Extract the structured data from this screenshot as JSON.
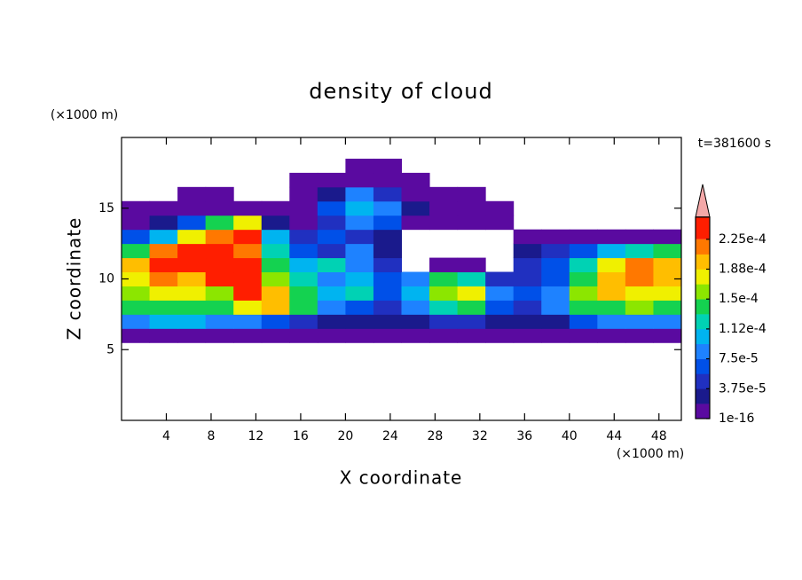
{
  "chart_data": {
    "type": "contour",
    "title": "density of cloud",
    "annotation": "t=381600 s",
    "xlabel": "X coordinate",
    "ylabel": "Z coordinate",
    "x_unit": "(×1000 m)",
    "y_unit": "(×1000 m)",
    "xlim": [
      0,
      50
    ],
    "xticks": [
      4,
      8,
      12,
      16,
      20,
      24,
      28,
      32,
      36,
      40,
      44,
      48
    ],
    "ylim": [
      0,
      20
    ],
    "yticks": [
      5,
      10,
      15
    ],
    "x": [
      1.25,
      3.75,
      6.25,
      8.75,
      11.25,
      13.75,
      16.25,
      18.75,
      21.25,
      23.75,
      26.25,
      28.75,
      31.25,
      33.75,
      36.25,
      38.75,
      41.25,
      43.75,
      46.25,
      48.75
    ],
    "y": [
      6,
      7,
      8,
      9,
      10,
      11,
      12,
      13,
      14,
      15,
      16,
      17,
      18
    ],
    "values": [
      [
        5e-06,
        5e-06,
        5e-06,
        5e-06,
        5e-06,
        5e-06,
        5e-06,
        5e-06,
        5e-06,
        5e-06,
        5e-06,
        5e-06,
        5e-06,
        5e-06,
        5e-06,
        5e-06,
        5e-06,
        5e-06,
        5e-06,
        5e-06
      ],
      [
        8e-05,
        0.0001,
        0.0001,
        9e-05,
        8e-05,
        6e-05,
        4e-05,
        3e-05,
        2e-05,
        2e-05,
        3e-05,
        4e-05,
        5e-05,
        2e-05,
        2e-05,
        3e-05,
        6e-05,
        8e-05,
        9e-05,
        9e-05
      ],
      [
        0.00014,
        0.00015,
        0.00014,
        0.00015,
        0.00018,
        0.0002,
        0.00014,
        8e-05,
        6e-05,
        5e-05,
        8e-05,
        0.00012,
        0.00014,
        6e-05,
        5e-05,
        8e-05,
        0.00014,
        0.00015,
        0.00016,
        0.00015
      ],
      [
        0.00016,
        0.00018,
        0.00017,
        0.00016,
        0.00024,
        0.0002,
        0.00014,
        0.0001,
        0.00012,
        6e-05,
        0.0001,
        0.00016,
        0.00018,
        8e-05,
        6e-05,
        8e-05,
        0.00016,
        0.00019,
        0.00018,
        0.00017
      ],
      [
        0.00018,
        0.00022,
        0.0002,
        0.00023,
        0.00025,
        0.00016,
        0.00012,
        8e-05,
        0.0001,
        6e-05,
        8e-05,
        0.00014,
        0.00012,
        4e-05,
        5e-05,
        6e-05,
        0.00014,
        0.0002,
        0.00022,
        0.0002
      ],
      [
        0.0002,
        0.00025,
        0.00025,
        0.00025,
        0.00024,
        0.00014,
        0.0001,
        0.00012,
        8e-05,
        4e-05,
        null,
        5e-06,
        5e-06,
        null,
        4e-05,
        6e-05,
        0.00012,
        0.00018,
        0.00021,
        0.0002
      ],
      [
        0.00014,
        0.00021,
        0.00024,
        0.00025,
        0.00022,
        0.00012,
        6e-05,
        4e-05,
        8e-05,
        2e-05,
        null,
        null,
        null,
        null,
        2e-05,
        4e-05,
        6e-05,
        0.0001,
        0.00012,
        0.00014
      ],
      [
        6e-05,
        0.0001,
        0.00018,
        0.00022,
        0.00024,
        0.0001,
        4e-05,
        6e-05,
        5e-05,
        2e-05,
        null,
        null,
        null,
        null,
        5e-06,
        5e-06,
        5e-06,
        5e-06,
        5e-06,
        1e-05
      ],
      [
        1e-05,
        3e-05,
        6e-05,
        0.00014,
        0.00018,
        3e-05,
        1e-05,
        5e-05,
        8e-05,
        6e-05,
        1e-05,
        5e-06,
        5e-06,
        5e-06,
        null,
        null,
        null,
        null,
        null,
        null
      ],
      [
        5e-06,
        5e-06,
        5e-06,
        5e-06,
        5e-06,
        5e-06,
        5e-06,
        6e-05,
        0.0001,
        8e-05,
        2e-05,
        5e-06,
        5e-06,
        5e-06,
        null,
        null,
        null,
        null,
        null,
        null
      ],
      [
        null,
        null,
        5e-06,
        5e-06,
        null,
        null,
        5e-06,
        3e-05,
        9e-05,
        4e-05,
        5e-06,
        5e-06,
        5e-06,
        null,
        null,
        null,
        null,
        null,
        null,
        null
      ],
      [
        null,
        null,
        null,
        null,
        null,
        null,
        5e-06,
        5e-06,
        5e-06,
        5e-06,
        5e-06,
        null,
        null,
        null,
        null,
        null,
        null,
        null,
        null,
        null
      ],
      [
        null,
        null,
        null,
        null,
        null,
        null,
        null,
        null,
        5e-06,
        5e-06,
        null,
        null,
        null,
        null,
        null,
        null,
        null,
        null,
        null,
        null
      ]
    ],
    "colorbar_ticks": [
      {
        "value": 1e-16,
        "label": "1e-16"
      },
      {
        "value": 3.75e-05,
        "label": "3.75e-5"
      },
      {
        "value": 7.5e-05,
        "label": "7.5e-5"
      },
      {
        "value": 0.000112,
        "label": "1.12e-4"
      },
      {
        "value": 0.00015,
        "label": "1.5e-4"
      },
      {
        "value": 0.000188,
        "label": "1.88e-4"
      },
      {
        "value": 0.000225,
        "label": "2.25e-4"
      }
    ],
    "colors": [
      "#5a0aa0",
      "#1a1a8c",
      "#2030c0",
      "#0050e8",
      "#1e82ff",
      "#00b4f0",
      "#00d2b4",
      "#14d250",
      "#8ce600",
      "#f0f000",
      "#ffbe00",
      "#ff7800",
      "#ff1e00"
    ],
    "extend_color": "#f4a8a8"
  }
}
